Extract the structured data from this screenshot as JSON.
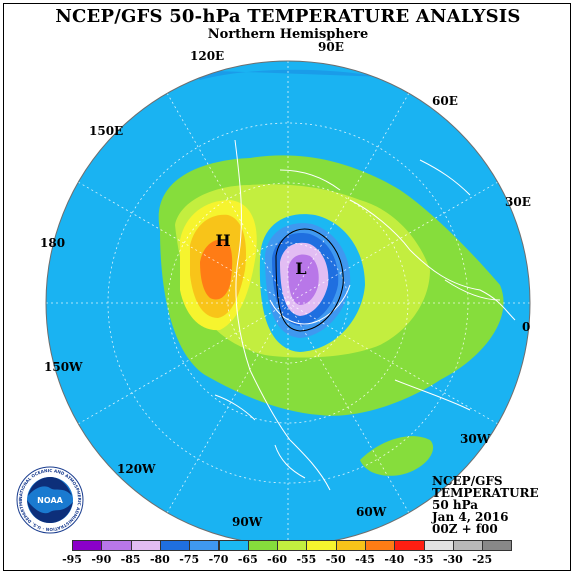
{
  "title": "NCEP/GFS 50-hPa TEMPERATURE ANALYSIS",
  "subtitle": "Northern Hemisphere",
  "longitude_labels": [
    "90E",
    "60E",
    "30E",
    "0",
    "30W",
    "60W",
    "90W",
    "120W",
    "150W",
    "180",
    "150E",
    "120E"
  ],
  "markers": {
    "high": "H",
    "low": "L"
  },
  "info": [
    "NCEP/GFS",
    "TEMPERATURE",
    "50 hPa",
    "Jan 4, 2016",
    "00Z + f00"
  ],
  "logo": {
    "text": "NOAA",
    "ring_text": "NATIONAL OCEANIC AND ATMOSPHERIC ADMINISTRATION · U.S. DEPARTMENT OF COMMERCE"
  },
  "legend": {
    "colors": [
      "#8b00c8",
      "#b877e8",
      "#e2bdf3",
      "#1f6fe0",
      "#3f98f0",
      "#1bb8f3",
      "#86dd3c",
      "#c3ee3f",
      "#f6f42e",
      "#f8c419",
      "#ff7c15",
      "#ff1f12",
      "#e2e2e2",
      "#b8b8b8",
      "#888888"
    ],
    "labels": [
      "-95",
      "-90",
      "-85",
      "-80",
      "-75",
      "-70",
      "-65",
      "-60",
      "-55",
      "-50",
      "-45",
      "-40",
      "-35",
      "-30",
      "-25"
    ]
  },
  "colors": {
    "background": "#1ab3f2",
    "ocean_edge": "#1a96e6"
  }
}
